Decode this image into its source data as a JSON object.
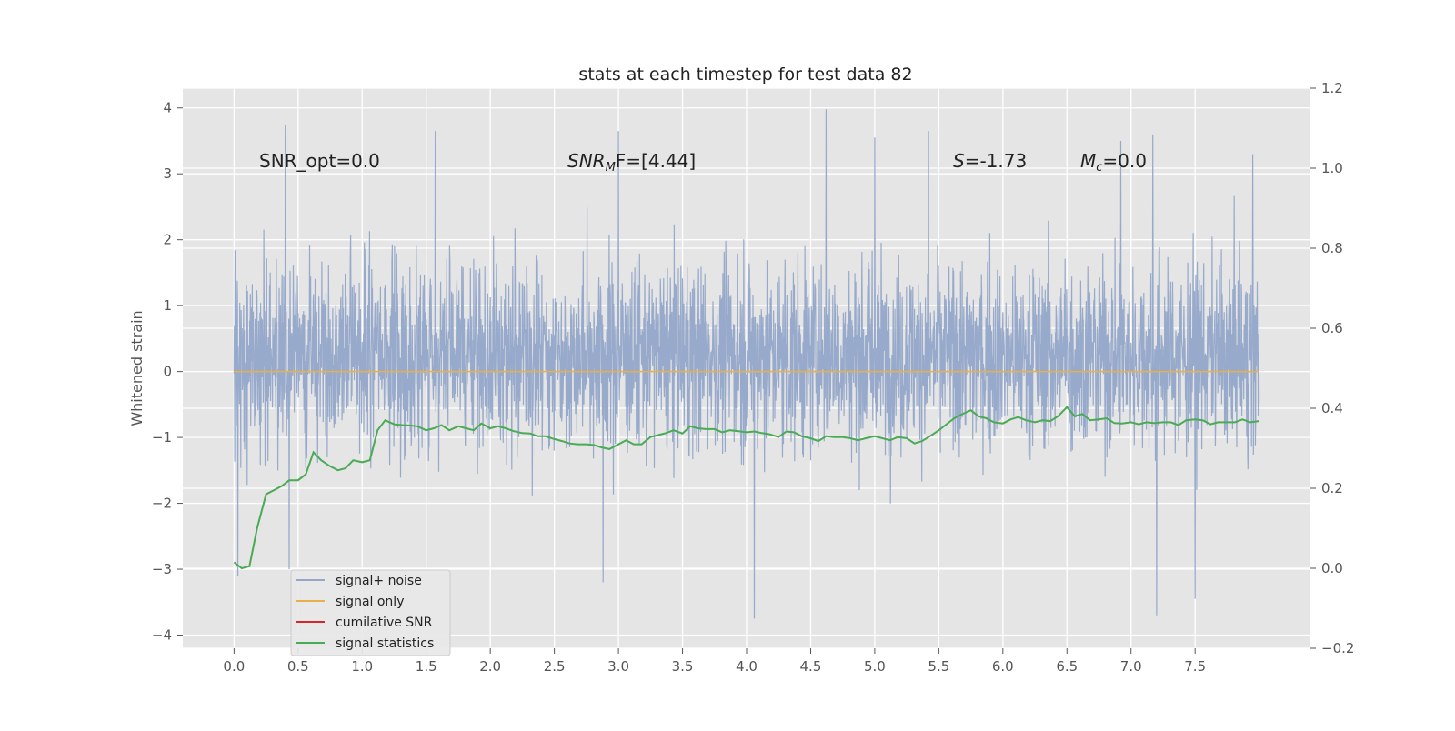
{
  "chart_data": {
    "type": "line",
    "title": "stats at each timestep for test data 82",
    "ylabel": "Whitened strain",
    "xlabel": "",
    "xlim": [
      -0.4,
      8.4
    ],
    "ylim": [
      -4.2,
      4.3
    ],
    "y2lim": [
      -0.2,
      1.2
    ],
    "x_ticks": [
      "0.0",
      "0.5",
      "1.0",
      "1.5",
      "2.0",
      "2.5",
      "3.0",
      "3.5",
      "4.0",
      "4.5",
      "5.0",
      "5.5",
      "6.0",
      "6.5",
      "7.0",
      "7.5"
    ],
    "y_ticks": [
      "−4",
      "−3",
      "−2",
      "−1",
      "0",
      "1",
      "2",
      "3",
      "4"
    ],
    "y2_ticks": [
      "−0.2",
      "0.0",
      "0.2",
      "0.4",
      "0.6",
      "0.8",
      "1.0",
      "1.2"
    ],
    "grid": true,
    "legend_position": "lower-left",
    "annotations": {
      "snr_opt": "SNR_opt=0.0",
      "snr_mf_main": "SNR",
      "snr_mf_sub": "M",
      "snr_mf_rest": "F=[4.44]",
      "s_var": "S",
      "s_rest": "=-1.73",
      "mc_var": "M",
      "mc_sub": "c",
      "mc_rest": "=0.0"
    },
    "series": [
      {
        "name": "signal+ noise",
        "color": "#94a7c9",
        "axis": "left",
        "x_range": [
          0.0,
          8.0
        ],
        "typical_band": [
          -1.7,
          2.3
        ],
        "extremes": [
          {
            "x": 0.03,
            "y": -3.1
          },
          {
            "x": 0.4,
            "y": 3.75
          },
          {
            "x": 0.43,
            "y": -3.0
          },
          {
            "x": 1.57,
            "y": 3.65
          },
          {
            "x": 2.88,
            "y": -3.2
          },
          {
            "x": 3.0,
            "y": 3.65
          },
          {
            "x": 4.06,
            "y": -3.75
          },
          {
            "x": 4.62,
            "y": 3.98
          },
          {
            "x": 5.0,
            "y": 3.55
          },
          {
            "x": 5.42,
            "y": 3.65
          },
          {
            "x": 6.92,
            "y": 3.5
          },
          {
            "x": 7.17,
            "y": 3.6
          },
          {
            "x": 7.2,
            "y": -3.7
          },
          {
            "x": 7.5,
            "y": -3.45
          },
          {
            "x": 7.95,
            "y": 3.3
          }
        ]
      },
      {
        "name": "signal only",
        "color": "#e8b04a",
        "axis": "left",
        "x": [
          0.0,
          8.0
        ],
        "y": [
          0.0,
          0.0
        ]
      },
      {
        "name": "cumilative SNR",
        "color": "#d62728",
        "axis": "right",
        "x": [],
        "y": []
      },
      {
        "name": "signal statistics",
        "color": "#4aaa55",
        "axis": "right",
        "x": [
          0.0,
          0.06,
          0.12,
          0.18,
          0.25,
          0.31,
          0.37,
          0.43,
          0.5,
          0.56,
          0.62,
          0.68,
          0.75,
          0.81,
          0.87,
          0.93,
          1.0,
          1.06,
          1.12,
          1.18,
          1.25,
          1.31,
          1.37,
          1.43,
          1.5,
          1.56,
          1.62,
          1.68,
          1.75,
          1.81,
          1.87,
          1.93,
          2.0,
          2.06,
          2.12,
          2.18,
          2.25,
          2.31,
          2.37,
          2.43,
          2.5,
          2.56,
          2.62,
          2.68,
          2.75,
          2.81,
          2.87,
          2.93,
          3.0,
          3.06,
          3.12,
          3.18,
          3.25,
          3.31,
          3.37,
          3.43,
          3.5,
          3.56,
          3.62,
          3.68,
          3.75,
          3.81,
          3.87,
          3.93,
          4.0,
          4.06,
          4.12,
          4.18,
          4.25,
          4.31,
          4.37,
          4.43,
          4.5,
          4.56,
          4.62,
          4.68,
          4.75,
          4.81,
          4.87,
          4.93,
          5.0,
          5.06,
          5.12,
          5.18,
          5.25,
          5.31,
          5.37,
          5.43,
          5.5,
          5.56,
          5.62,
          5.68,
          5.75,
          5.81,
          5.87,
          5.93,
          6.0,
          6.06,
          6.12,
          6.18,
          6.25,
          6.31,
          6.37,
          6.43,
          6.5,
          6.56,
          6.62,
          6.68,
          6.75,
          6.81,
          6.87,
          6.93,
          7.0,
          7.06,
          7.12,
          7.18,
          7.25,
          7.31,
          7.37,
          7.43,
          7.5,
          7.56,
          7.62,
          7.68,
          7.75,
          7.81,
          7.87,
          7.93,
          8.0
        ],
        "y": [
          0.015,
          0.0,
          0.005,
          0.1,
          0.185,
          0.195,
          0.205,
          0.22,
          0.22,
          0.235,
          0.29,
          0.27,
          0.255,
          0.245,
          0.25,
          0.27,
          0.265,
          0.27,
          0.345,
          0.37,
          0.36,
          0.358,
          0.357,
          0.355,
          0.345,
          0.35,
          0.358,
          0.345,
          0.355,
          0.35,
          0.345,
          0.362,
          0.35,
          0.355,
          0.35,
          0.343,
          0.338,
          0.337,
          0.33,
          0.33,
          0.323,
          0.318,
          0.312,
          0.31,
          0.31,
          0.308,
          0.302,
          0.298,
          0.31,
          0.32,
          0.31,
          0.31,
          0.328,
          0.333,
          0.338,
          0.345,
          0.337,
          0.355,
          0.35,
          0.348,
          0.348,
          0.34,
          0.345,
          0.343,
          0.34,
          0.342,
          0.338,
          0.335,
          0.328,
          0.342,
          0.34,
          0.33,
          0.325,
          0.318,
          0.33,
          0.328,
          0.328,
          0.325,
          0.32,
          0.325,
          0.33,
          0.325,
          0.32,
          0.328,
          0.325,
          0.312,
          0.318,
          0.33,
          0.345,
          0.36,
          0.375,
          0.385,
          0.395,
          0.38,
          0.375,
          0.365,
          0.362,
          0.372,
          0.378,
          0.37,
          0.365,
          0.37,
          0.368,
          0.38,
          0.403,
          0.38,
          0.386,
          0.37,
          0.372,
          0.375,
          0.363,
          0.362,
          0.365,
          0.36,
          0.365,
          0.363,
          0.365,
          0.365,
          0.358,
          0.37,
          0.372,
          0.37,
          0.36,
          0.365,
          0.365,
          0.365,
          0.372,
          0.365,
          0.368
        ]
      }
    ]
  }
}
